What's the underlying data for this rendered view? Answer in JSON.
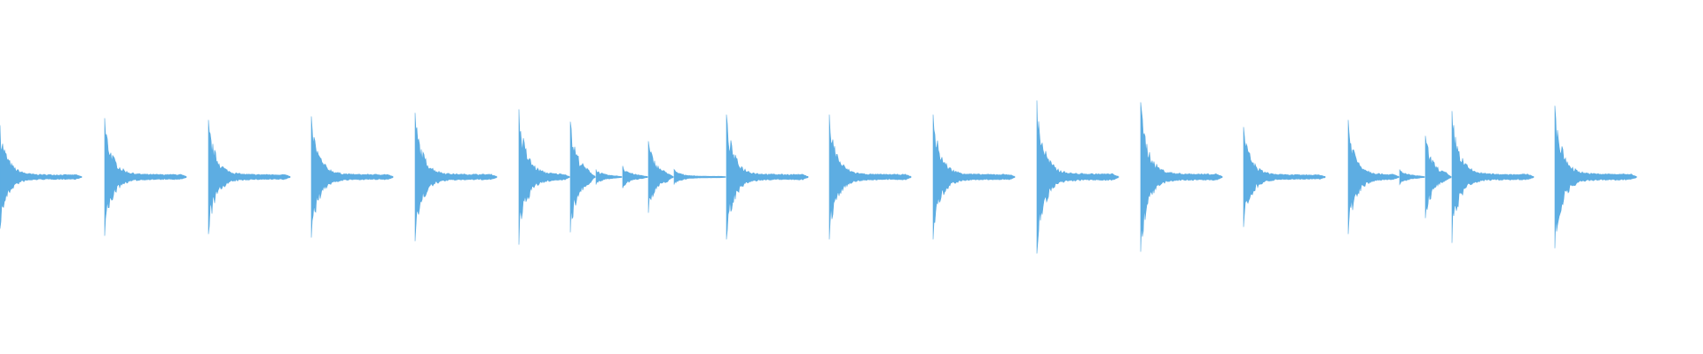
{
  "chart_data": {
    "type": "waveform",
    "color": "#5dade2",
    "xlim": [
      0,
      1920
    ],
    "ylim": [
      -1,
      1
    ],
    "x": [
      0,
      118,
      235,
      351,
      468,
      585,
      643,
      672,
      702,
      731,
      760,
      819,
      935,
      1052,
      1169,
      1286,
      1402,
      1520,
      1578,
      1607,
      1637,
      1753
    ],
    "values": [
      0.29,
      0.33,
      0.32,
      0.34,
      0.36,
      0.38,
      0.31,
      0.04,
      0.06,
      0.2,
      0.04,
      0.35,
      0.35,
      0.35,
      0.43,
      0.42,
      0.28,
      0.32,
      0.04,
      0.23,
      0.37,
      0.4
    ]
  }
}
